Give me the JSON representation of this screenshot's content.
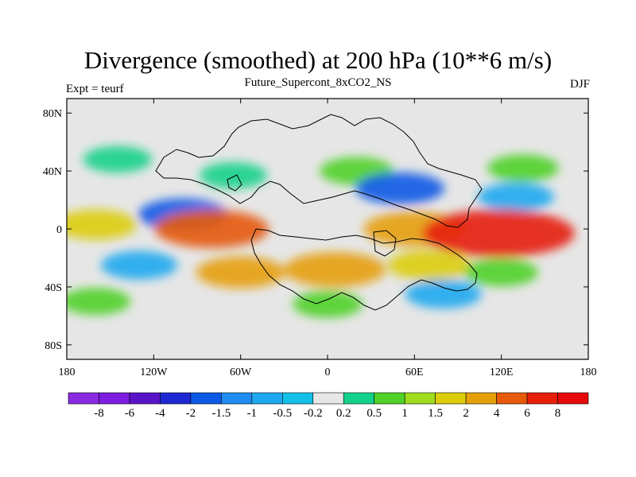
{
  "figure": {
    "title": "Divergence (smoothed) at 200 hPa (10**6 m/s)",
    "subtitle": "Future_Supercont_8xCO2_NS",
    "left_label": "Expt = teurf",
    "right_label": "DJF"
  },
  "chart_data": {
    "type": "heatmap",
    "title": "Divergence (smoothed) at 200 hPa (10**6 m/s)",
    "xlim": [
      -180,
      180
    ],
    "ylim": [
      -90,
      90
    ],
    "x_ticks": [
      {
        "value": -180,
        "label": "180"
      },
      {
        "value": -120,
        "label": "120W"
      },
      {
        "value": -60,
        "label": "60W"
      },
      {
        "value": 0,
        "label": "0"
      },
      {
        "value": 60,
        "label": "60E"
      },
      {
        "value": 120,
        "label": "120E"
      },
      {
        "value": 180,
        "label": "180"
      }
    ],
    "y_ticks": [
      {
        "value": 80,
        "label": "80N"
      },
      {
        "value": 40,
        "label": "40N"
      },
      {
        "value": 0,
        "label": "0"
      },
      {
        "value": -40,
        "label": "40S"
      },
      {
        "value": -80,
        "label": "80S"
      }
    ],
    "colorbar": {
      "labels": [
        "-8",
        "-6",
        "-4",
        "-2",
        "-1.5",
        "-1",
        "-0.5",
        "-0.2",
        "0.2",
        "0.5",
        "1",
        "1.5",
        "2",
        "4",
        "6",
        "8"
      ],
      "colors": [
        "#8a2be2",
        "#7d1ee0",
        "#5a14c8",
        "#1e28d2",
        "#0a5ae6",
        "#1e8cf0",
        "#1ea8f0",
        "#14c0e6",
        "#e6e6e6",
        "#14d28c",
        "#50d228",
        "#a0dc1e",
        "#dccd0a",
        "#e6a00a",
        "#e65a0a",
        "#e61e0a",
        "#e60a0a"
      ]
    },
    "field": [
      {
        "lon": -65,
        "lat": 37,
        "value": 0.3
      },
      {
        "lon": 20,
        "lat": 40,
        "value": 0.8
      },
      {
        "lon": 135,
        "lat": 42,
        "value": 0.6
      },
      {
        "lon": -145,
        "lat": 48,
        "value": 0.4
      },
      {
        "lon": -100,
        "lat": 10,
        "value": -2
      },
      {
        "lon": 50,
        "lat": 28,
        "value": -2
      },
      {
        "lon": 130,
        "lat": 22,
        "value": -1
      },
      {
        "lon": -160,
        "lat": 3,
        "value": 1.5
      },
      {
        "lon": -80,
        "lat": 0,
        "value": 4
      },
      {
        "lon": 60,
        "lat": 0,
        "value": 3
      },
      {
        "lon": 118,
        "lat": -3,
        "value": 7
      },
      {
        "lon": -60,
        "lat": -30,
        "value": 2
      },
      {
        "lon": 5,
        "lat": -28,
        "value": 3
      },
      {
        "lon": 70,
        "lat": -25,
        "value": 1.5
      },
      {
        "lon": 120,
        "lat": -30,
        "value": 0.8
      },
      {
        "lon": 80,
        "lat": -45,
        "value": -1
      },
      {
        "lon": -130,
        "lat": -25,
        "value": -1
      },
      {
        "lon": -160,
        "lat": -50,
        "value": 0.5
      },
      {
        "lon": 0,
        "lat": -52,
        "value": 0.5
      }
    ]
  }
}
